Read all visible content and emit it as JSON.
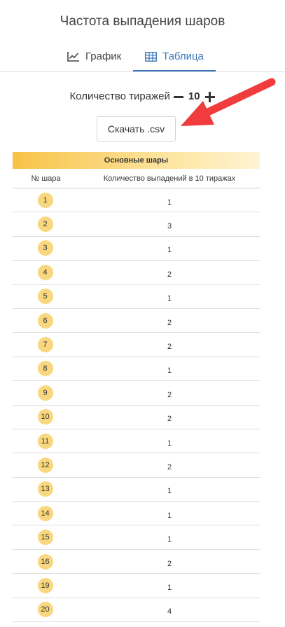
{
  "header": {
    "title": "Частота выпадения шаров"
  },
  "tabs": [
    {
      "label": "График",
      "icon": "line-chart-icon",
      "active": false
    },
    {
      "label": "Таблица",
      "icon": "table-icon",
      "active": true
    }
  ],
  "draws": {
    "label": "Количество тиражей",
    "count": "10"
  },
  "download": {
    "label": "Скачать .csv"
  },
  "annotation": {
    "color": "#f03c3c",
    "icon": "red-arrow-icon"
  },
  "table": {
    "band_title": "Основные шары",
    "headers": [
      "№ шара",
      "Количество выпадений в 10 тиражах"
    ],
    "rows": [
      {
        "ball": "1",
        "count": "1"
      },
      {
        "ball": "2",
        "count": "3"
      },
      {
        "ball": "3",
        "count": "1"
      },
      {
        "ball": "4",
        "count": "2"
      },
      {
        "ball": "5",
        "count": "1"
      },
      {
        "ball": "6",
        "count": "2"
      },
      {
        "ball": "7",
        "count": "2"
      },
      {
        "ball": "8",
        "count": "1"
      },
      {
        "ball": "9",
        "count": "2"
      },
      {
        "ball": "10",
        "count": "2"
      },
      {
        "ball": "11",
        "count": "1"
      },
      {
        "ball": "12",
        "count": "2"
      },
      {
        "ball": "13",
        "count": "1"
      },
      {
        "ball": "14",
        "count": "1"
      },
      {
        "ball": "15",
        "count": "1"
      },
      {
        "ball": "16",
        "count": "2"
      },
      {
        "ball": "19",
        "count": "1"
      },
      {
        "ball": "20",
        "count": "4"
      }
    ]
  },
  "colors": {
    "accent": "#3a74b9",
    "ball": "#f9d77e",
    "band_start": "#f7c347"
  }
}
